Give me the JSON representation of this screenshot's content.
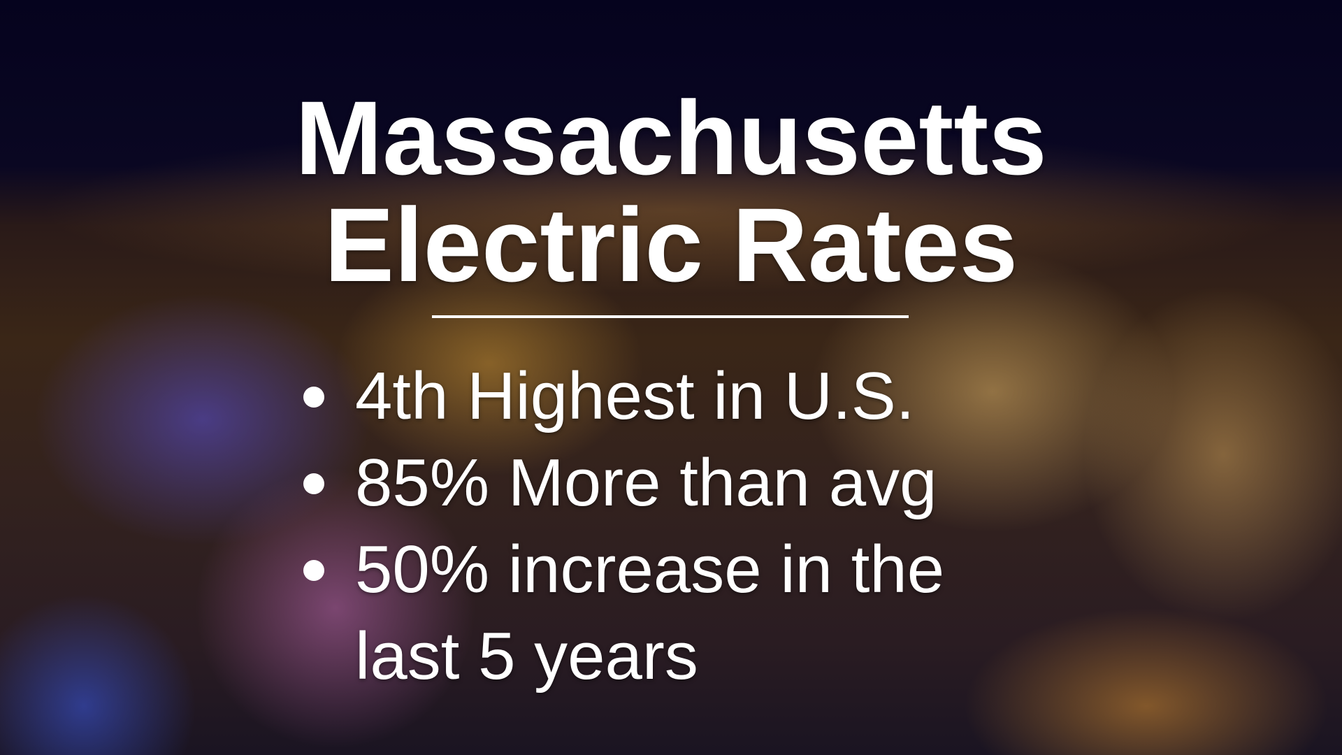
{
  "title": {
    "line1": "Massachusetts",
    "line2": "Electric Rates"
  },
  "bullets": [
    "4th Highest in U.S.",
    "85% More than avg",
    "50% increase in the last 5 years"
  ]
}
